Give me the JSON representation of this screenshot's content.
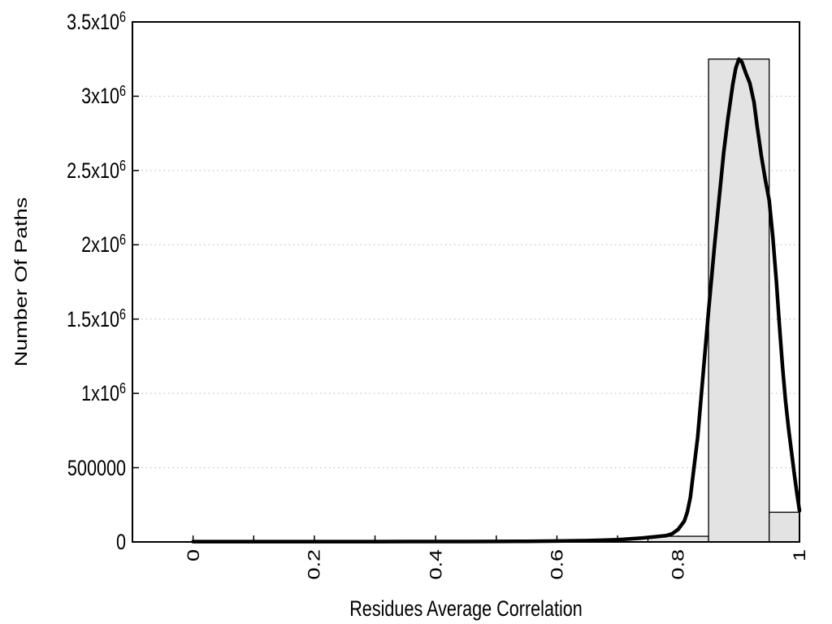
{
  "chart_data": {
    "type": "bar",
    "subtype": "histogram_with_fit_curve",
    "title": "",
    "xlabel": "Residues Average Correlation",
    "ylabel": "Number Of Paths",
    "xlim": [
      -0.1,
      1.0
    ],
    "ylim": [
      0,
      3500000
    ],
    "legend_position": "none",
    "grid": {
      "horizontal_dotted": true,
      "vertical": false
    },
    "colors": {
      "background": "#ffffff",
      "bar_fill": "#e3e3e3",
      "bar_border": "#000000",
      "curve": "#000000",
      "axis": "#000000",
      "grid": "#b5b5b5",
      "text": "#000000"
    },
    "x_ticks": {
      "minor_step": 0.1,
      "labeled": [
        {
          "value": 0,
          "label": "0"
        },
        {
          "value": 0.2,
          "label": "0.2"
        },
        {
          "value": 0.4,
          "label": "0.4"
        },
        {
          "value": 0.6,
          "label": "0.6"
        },
        {
          "value": 0.8,
          "label": "0.8"
        },
        {
          "value": 1,
          "label": "1"
        }
      ]
    },
    "y_ticks": [
      {
        "value": 0,
        "label": "0"
      },
      {
        "value": 500000,
        "label": "500000"
      },
      {
        "value": 1000000,
        "label": "1x10",
        "sup": "6"
      },
      {
        "value": 1500000,
        "label": "1.5x10",
        "sup": "6"
      },
      {
        "value": 2000000,
        "label": "2x10",
        "sup": "6"
      },
      {
        "value": 2500000,
        "label": "2.5x10",
        "sup": "6"
      },
      {
        "value": 3000000,
        "label": "3x10",
        "sup": "6"
      },
      {
        "value": 3500000,
        "label": "3.5x10",
        "sup": "6"
      }
    ],
    "bars": {
      "bin_edges": [
        0.75,
        0.85,
        0.95,
        1.0
      ],
      "heights": [
        38000,
        3250000,
        200000
      ]
    },
    "curve_points": [
      [
        0,
        2000
      ],
      [
        0.05,
        2000
      ],
      [
        0.1,
        2000
      ],
      [
        0.15,
        2000
      ],
      [
        0.2,
        2000
      ],
      [
        0.25,
        2000
      ],
      [
        0.3,
        2000
      ],
      [
        0.35,
        2500
      ],
      [
        0.4,
        2500
      ],
      [
        0.45,
        3000
      ],
      [
        0.5,
        3500
      ],
      [
        0.55,
        4500
      ],
      [
        0.6,
        6000
      ],
      [
        0.65,
        9000
      ],
      [
        0.68,
        12000
      ],
      [
        0.7,
        15000
      ],
      [
        0.72,
        20000
      ],
      [
        0.74,
        26000
      ],
      [
        0.76,
        34000
      ],
      [
        0.78,
        42000
      ],
      [
        0.79,
        55000
      ],
      [
        0.8,
        85000
      ],
      [
        0.81,
        140000
      ],
      [
        0.815,
        200000
      ],
      [
        0.82,
        300000
      ],
      [
        0.826,
        500000
      ],
      [
        0.832,
        700000
      ],
      [
        0.84,
        1080000
      ],
      [
        0.85,
        1550000
      ],
      [
        0.86,
        2000000
      ],
      [
        0.867,
        2290000
      ],
      [
        0.875,
        2620000
      ],
      [
        0.882,
        2850000
      ],
      [
        0.89,
        3080000
      ],
      [
        0.895,
        3190000
      ],
      [
        0.9,
        3250000
      ],
      [
        0.905,
        3230000
      ],
      [
        0.912,
        3150000
      ],
      [
        0.918,
        3090000
      ],
      [
        0.925,
        2960000
      ],
      [
        0.93,
        2800000
      ],
      [
        0.937,
        2600000
      ],
      [
        0.944,
        2430000
      ],
      [
        0.95,
        2300000
      ],
      [
        0.956,
        2050000
      ],
      [
        0.962,
        1750000
      ],
      [
        0.967,
        1450000
      ],
      [
        0.972,
        1180000
      ],
      [
        0.977,
        950000
      ],
      [
        0.982,
        760000
      ],
      [
        0.987,
        600000
      ],
      [
        0.992,
        440000
      ],
      [
        0.996,
        320000
      ],
      [
        1,
        210000
      ]
    ]
  }
}
